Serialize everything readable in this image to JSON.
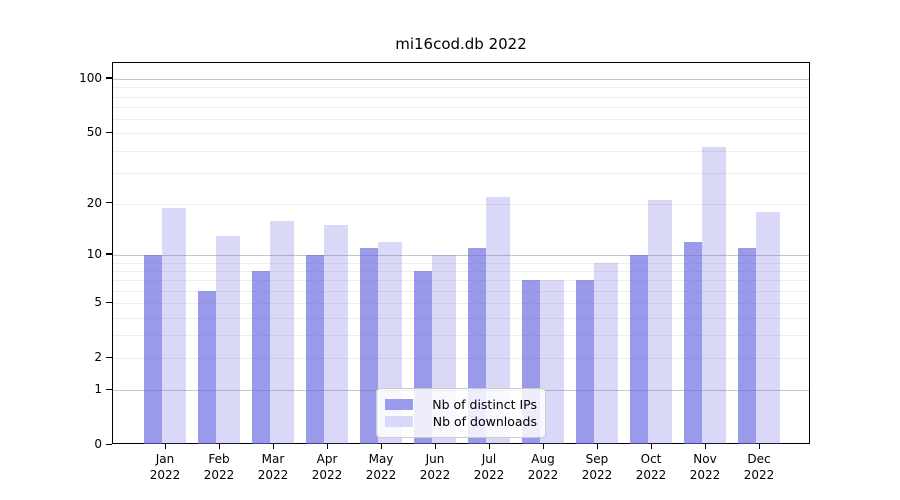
{
  "chart_data": {
    "type": "bar",
    "title": "mi16cod.db 2022",
    "categories": [
      "Jan",
      "Feb",
      "Mar",
      "Apr",
      "May",
      "Jun",
      "Jul",
      "Aug",
      "Sep",
      "Oct",
      "Nov",
      "Dec"
    ],
    "year": "2022",
    "series": [
      {
        "name": "Nb of distinct IPs",
        "values": [
          10,
          6,
          8,
          10,
          11,
          8,
          11,
          7,
          7,
          10,
          12,
          11
        ]
      },
      {
        "name": "Nb of downloads",
        "values": [
          19,
          13,
          16,
          15,
          12,
          10,
          22,
          7,
          9,
          21,
          42,
          18
        ]
      }
    ],
    "yscale": "log1p",
    "yticks": [
      0,
      1,
      2,
      5,
      10,
      20,
      50,
      100
    ],
    "ylim": [
      0,
      120
    ],
    "grid": "on",
    "legend_position": "lower center",
    "colors": {
      "bar_base": "#6666e0",
      "series_alpha": [
        0.66,
        0.25
      ],
      "series_flat": [
        "#9a9aee",
        "#d8d8f7"
      ],
      "grid_major": "#c6c6c6",
      "grid_minor": "#ededed",
      "spine": "#000000",
      "text": "#000000",
      "legend_border": "#cccccc"
    }
  }
}
